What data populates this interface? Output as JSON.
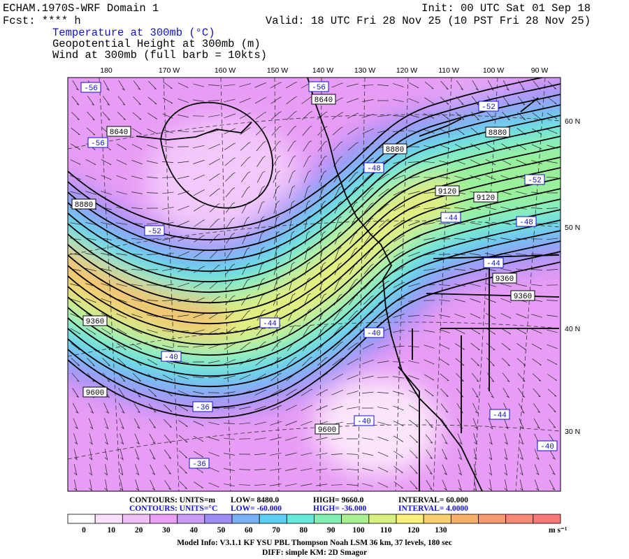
{
  "header": {
    "model": "ECHAM.1970S-WRF Domain 1",
    "forecast": "Fcst: **** h",
    "init": "Init: 00 UTC Sat 01 Sep 18",
    "valid": "Valid: 18 UTC Fri 28 Nov 25 (10 PST Fri 28 Nov 25)"
  },
  "fields": [
    "Temperature at 300mb (°C)",
    "Geopotential Height at 300mb (m)",
    "Wind at 300mb (full barb = 10kts)"
  ],
  "map": {
    "longitude_labels": [
      "180",
      "170 W",
      "160 W",
      "150 W",
      "140 W",
      "130 W",
      "120 W",
      "110 W",
      "100 W",
      "90 W"
    ],
    "latitude_labels": [
      "60 N",
      "50 N",
      "40 N",
      "30 N"
    ],
    "height_labels": [
      "8640",
      "8640",
      "8880",
      "8880",
      "8880",
      "9120",
      "9120",
      "9360",
      "9360",
      "9360",
      "9600",
      "9600"
    ],
    "temperature_labels": [
      "-56",
      "-56",
      "-56",
      "-52",
      "-48",
      "-52",
      "-52",
      "-44",
      "-48",
      "-44",
      "-44",
      "-40",
      "-40",
      "-36",
      "-36",
      "-40",
      "-44",
      "-40"
    ]
  },
  "contour_info": [
    {
      "units": "CONTOURS:  UNITS=m",
      "low": "LOW=  8480.0",
      "high": "HIGH=  9660.0",
      "interval": "INTERVAL=   60.000"
    },
    {
      "units": "CONTOURS:  UNITS=°C",
      "low": "LOW= -60.000",
      "high": "HIGH= -36.000",
      "interval": "INTERVAL=   4.0000"
    }
  ],
  "colorbar": {
    "ticks": [
      "0",
      "10",
      "20",
      "30",
      "40",
      "50",
      "60",
      "70",
      "80",
      "90",
      "100",
      "110",
      "120",
      "130"
    ],
    "unit": "m s⁻¹"
  },
  "footer": [
    "Model Info: V3.1.1    KF    YSU PBL  Thompson   Noah LSM  36 km,   37 levels,  180 sec",
    "DIFF: simple KM: 2D Smagor"
  ]
}
